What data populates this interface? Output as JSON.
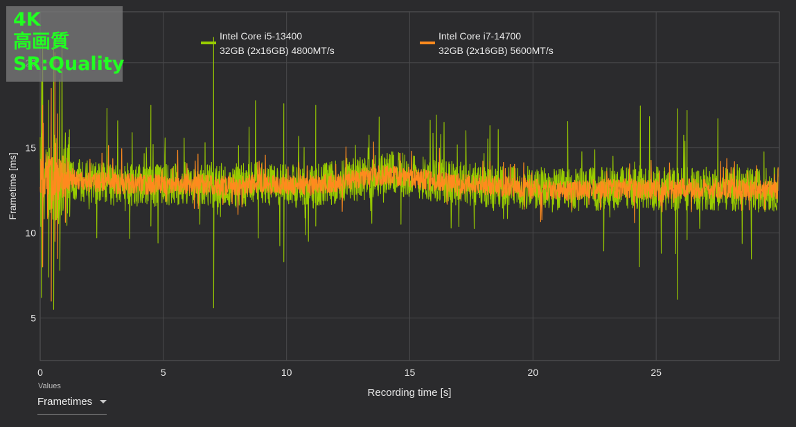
{
  "badge": {
    "line1": "4K",
    "line2": "高画質",
    "line3": "SR:Quality"
  },
  "legend": [
    {
      "line1": "Intel Core i5-13400",
      "line2": "32GB (2x16GB) 4800MT/s",
      "color": "#99cc00"
    },
    {
      "line1": "Intel Core i7-14700",
      "line2": "32GB (2x16GB) 5600MT/s",
      "color": "#ff8a1e"
    }
  ],
  "controls": {
    "values_label": "Values",
    "dropdown_value": "Frametimes"
  },
  "chart_data": {
    "type": "line",
    "title": "",
    "xlabel": "Recording time [s]",
    "ylabel": "Frametime [ms]",
    "xlim": [
      0,
      30
    ],
    "ylim": [
      2.5,
      23
    ],
    "xticks": [
      0,
      5,
      10,
      15,
      20,
      25
    ],
    "yticks": [
      5,
      10,
      15,
      20
    ],
    "grid": true,
    "legend_position": "top",
    "series": [
      {
        "name": "Intel Core i5-13400 32GB (2x16GB) 4800MT/s",
        "color": "#99cc00",
        "x": [
          0,
          0.5,
          1,
          2,
          3,
          4,
          5,
          6,
          7,
          8,
          9,
          10,
          11,
          12,
          13,
          14,
          15,
          16,
          17,
          18,
          19,
          20,
          21,
          22,
          23,
          24,
          25,
          26,
          27,
          28,
          29,
          30
        ],
        "y": [
          13.2,
          13.0,
          13.3,
          13.0,
          12.9,
          12.8,
          12.8,
          12.9,
          12.8,
          12.8,
          12.9,
          12.8,
          12.7,
          13.0,
          13.2,
          13.5,
          13.4,
          13.1,
          12.9,
          12.8,
          12.7,
          12.6,
          12.5,
          12.5,
          12.6,
          12.7,
          12.6,
          12.6,
          12.6,
          12.6,
          12.5,
          12.6
        ],
        "noise_amplitude_ms": 1.3,
        "spikes": [
          {
            "x": 0.05,
            "low": 6.2,
            "high": 18.9
          },
          {
            "x": 0.35,
            "low": 7.4,
            "high": 17.8
          },
          {
            "x": 0.55,
            "low": 5.5,
            "high": 21.2
          },
          {
            "x": 0.8,
            "low": 7.8,
            "high": 19.0
          },
          {
            "x": 4.5,
            "low": 10.4,
            "high": 17.5
          },
          {
            "x": 7.05,
            "low": 5.6,
            "high": 21.5
          },
          {
            "x": 9.9,
            "low": 8.3,
            "high": 17.6
          },
          {
            "x": 11.2,
            "low": 10.4,
            "high": 17.5
          },
          {
            "x": 25.9,
            "low": 6.1,
            "high": 17.3
          },
          {
            "x": 26.3,
            "low": 9.6,
            "high": 17.2
          }
        ]
      },
      {
        "name": "Intel Core i7-14700 32GB (2x16GB) 5600MT/s",
        "color": "#ff8a1e",
        "x": [
          0,
          0.5,
          1,
          2,
          3,
          4,
          5,
          6,
          7,
          8,
          9,
          10,
          11,
          12,
          13,
          14,
          15,
          16,
          17,
          18,
          19,
          20,
          21,
          22,
          23,
          24,
          25,
          26,
          27,
          28,
          29,
          30
        ],
        "y": [
          13.5,
          13.2,
          13.3,
          13.0,
          12.9,
          12.9,
          12.8,
          12.9,
          12.8,
          12.8,
          12.9,
          12.8,
          12.8,
          13.0,
          13.2,
          13.4,
          13.3,
          13.0,
          12.9,
          12.8,
          12.7,
          12.6,
          12.5,
          12.5,
          12.6,
          12.6,
          12.5,
          12.6,
          12.6,
          12.6,
          12.5,
          12.6
        ],
        "noise_amplitude_ms": 0.6,
        "spikes": [
          {
            "x": 0.1,
            "low": 8.0,
            "high": 17.5
          },
          {
            "x": 0.45,
            "low": 6.0,
            "high": 18.5
          },
          {
            "x": 0.6,
            "low": 9.5,
            "high": 20.6
          },
          {
            "x": 0.7,
            "low": 8.5,
            "high": 17.0
          }
        ]
      }
    ]
  }
}
